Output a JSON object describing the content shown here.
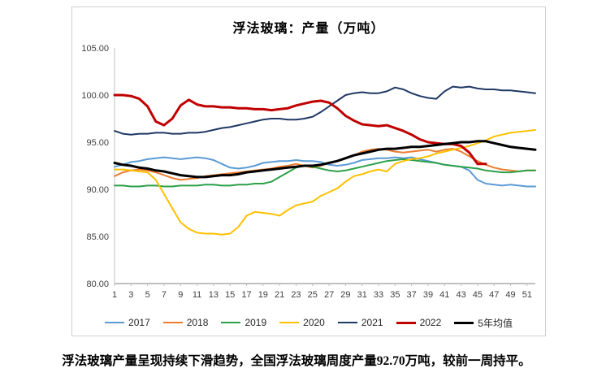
{
  "chart_data": {
    "type": "line",
    "title": "浮法玻璃：产量（万吨）",
    "xlabel": "",
    "ylabel": "",
    "x_range": [
      1,
      52
    ],
    "x_tick_labels": [
      "1",
      "3",
      "5",
      "7",
      "9",
      "11",
      "13",
      "15",
      "17",
      "19",
      "21",
      "23",
      "25",
      "27",
      "29",
      "31",
      "33",
      "35",
      "37",
      "39",
      "41",
      "43",
      "45",
      "47",
      "49",
      "51"
    ],
    "ylim": [
      80,
      105
    ],
    "y_ticks": [
      80,
      85,
      90,
      95,
      100,
      105
    ],
    "grid": false,
    "legend_position": "bottom",
    "series": [
      {
        "name": "2017",
        "color": "#5B9BD5",
        "width": 2,
        "values": [
          92.4,
          92.6,
          92.9,
          93.0,
          93.2,
          93.3,
          93.4,
          93.3,
          93.2,
          93.3,
          93.4,
          93.3,
          93.1,
          92.7,
          92.3,
          92.2,
          92.3,
          92.5,
          92.8,
          92.9,
          93.0,
          93.0,
          93.1,
          93.0,
          93.0,
          92.9,
          92.6,
          92.5,
          92.6,
          92.8,
          93.1,
          93.2,
          93.3,
          93.3,
          93.4,
          93.3,
          93.4,
          93.2,
          93.0,
          92.8,
          92.6,
          92.5,
          92.4,
          92.0,
          91.0,
          90.6,
          90.5,
          90.4,
          90.5,
          90.4,
          90.3,
          90.3
        ]
      },
      {
        "name": "2018",
        "color": "#ED7D31",
        "width": 2,
        "values": [
          91.4,
          91.8,
          92.0,
          92.1,
          92.0,
          91.8,
          91.5,
          91.2,
          91.0,
          91.1,
          91.2,
          91.4,
          91.5,
          91.6,
          91.7,
          91.8,
          91.9,
          92.0,
          92.1,
          92.2,
          92.4,
          92.5,
          92.7,
          92.5,
          92.3,
          92.5,
          92.8,
          93.0,
          93.3,
          93.6,
          94.0,
          94.2,
          94.3,
          94.2,
          94.0,
          93.9,
          94.0,
          94.1,
          94.2,
          94.0,
          94.2,
          94.3,
          94.0,
          93.5,
          93.0,
          92.6,
          92.3,
          92.1,
          92.0,
          91.9,
          92.0,
          92.0
        ]
      },
      {
        "name": "2019",
        "color": "#2CA049",
        "width": 2,
        "values": [
          90.4,
          90.4,
          90.3,
          90.3,
          90.4,
          90.4,
          90.3,
          90.3,
          90.4,
          90.4,
          90.4,
          90.5,
          90.5,
          90.4,
          90.4,
          90.5,
          90.5,
          90.6,
          90.6,
          90.8,
          91.3,
          91.8,
          92.3,
          92.5,
          92.4,
          92.2,
          92.0,
          91.9,
          92.0,
          92.2,
          92.4,
          92.6,
          92.8,
          93.0,
          93.1,
          93.2,
          93.1,
          93.0,
          92.9,
          92.8,
          92.6,
          92.5,
          92.4,
          92.3,
          92.2,
          92.0,
          91.9,
          91.8,
          91.8,
          91.9,
          92.0,
          92.0
        ]
      },
      {
        "name": "2020",
        "color": "#FFC000",
        "width": 2,
        "values": [
          92.1,
          92.1,
          92.0,
          91.9,
          91.8,
          91.0,
          89.5,
          88.0,
          86.5,
          85.8,
          85.4,
          85.3,
          85.3,
          85.2,
          85.3,
          86.0,
          87.2,
          87.6,
          87.5,
          87.4,
          87.2,
          87.8,
          88.3,
          88.5,
          88.7,
          89.3,
          89.7,
          90.1,
          90.8,
          91.4,
          91.6,
          91.9,
          92.1,
          91.9,
          92.7,
          93.0,
          93.2,
          93.3,
          93.5,
          93.8,
          94.0,
          94.2,
          94.4,
          94.6,
          94.9,
          95.2,
          95.6,
          95.8,
          96.0,
          96.1,
          96.2,
          96.3
        ]
      },
      {
        "name": "2021",
        "color": "#1F3864",
        "width": 2,
        "values": [
          96.2,
          95.9,
          95.8,
          95.9,
          95.9,
          96.0,
          96.0,
          95.9,
          95.9,
          96.0,
          96.0,
          96.1,
          96.3,
          96.5,
          96.6,
          96.8,
          97.0,
          97.2,
          97.4,
          97.5,
          97.5,
          97.4,
          97.4,
          97.5,
          97.7,
          98.2,
          98.8,
          99.4,
          100.0,
          100.2,
          100.3,
          100.2,
          100.2,
          100.4,
          100.8,
          100.6,
          100.2,
          99.9,
          99.7,
          99.6,
          100.4,
          100.9,
          100.8,
          100.9,
          100.7,
          100.6,
          100.6,
          100.5,
          100.5,
          100.4,
          100.3,
          100.2
        ]
      },
      {
        "name": "2022",
        "color": "#C00000",
        "width": 3,
        "values": [
          100.0,
          100.0,
          99.9,
          99.6,
          98.8,
          97.2,
          96.8,
          97.5,
          98.9,
          99.5,
          99.0,
          98.8,
          98.8,
          98.7,
          98.7,
          98.6,
          98.6,
          98.5,
          98.5,
          98.4,
          98.5,
          98.6,
          98.9,
          99.1,
          99.3,
          99.4,
          99.2,
          98.6,
          97.8,
          97.3,
          96.9,
          96.8,
          96.7,
          96.8,
          96.5,
          96.2,
          95.8,
          95.3,
          95.0,
          94.9,
          94.8,
          94.8,
          94.6,
          93.9,
          92.7,
          92.7,
          null,
          null,
          null,
          null,
          null,
          null
        ]
      },
      {
        "name": "5年均值",
        "color": "#000000",
        "width": 3,
        "values": [
          92.8,
          92.6,
          92.5,
          92.3,
          92.2,
          92.0,
          91.9,
          91.7,
          91.5,
          91.4,
          91.3,
          91.3,
          91.4,
          91.5,
          91.5,
          91.6,
          91.8,
          91.9,
          92.0,
          92.1,
          92.2,
          92.3,
          92.4,
          92.5,
          92.5,
          92.6,
          92.8,
          93.0,
          93.3,
          93.6,
          93.8,
          94.0,
          94.2,
          94.3,
          94.3,
          94.4,
          94.5,
          94.5,
          94.6,
          94.7,
          94.8,
          94.9,
          95.0,
          95.0,
          95.1,
          95.1,
          94.9,
          94.7,
          94.5,
          94.4,
          94.3,
          94.2
        ]
      }
    ],
    "axis_color": "#808080",
    "tick_label_color": "#404040"
  },
  "caption": {
    "text": "浮法玻璃产量呈现持续下滑趋势，全国浮法玻璃周度产量92.70万吨，较前一周持平。"
  }
}
